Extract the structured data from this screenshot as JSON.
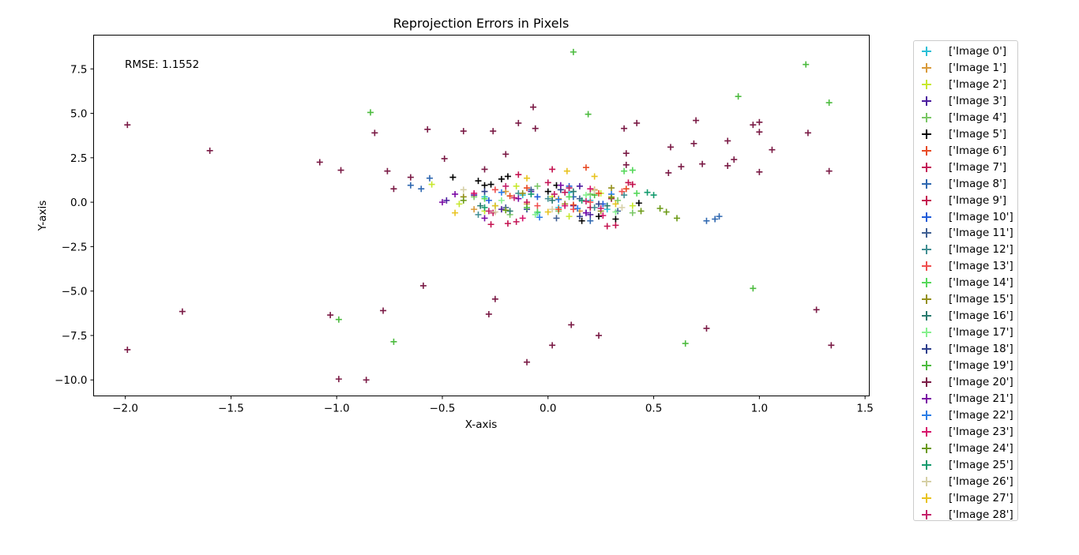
{
  "chart_data": {
    "type": "scatter",
    "title": "Reprojection Errors in Pixels",
    "xlabel": "X-axis",
    "ylabel": "Y-axis",
    "annotation": "RMSE: 1.1552",
    "xlim": [
      -2.15,
      1.52
    ],
    "ylim": [
      -10.9,
      9.4
    ],
    "xticks": [
      -2.0,
      -1.5,
      -1.0,
      -0.5,
      0.0,
      0.5,
      1.0,
      1.5
    ],
    "xtick_labels": [
      "−2.0",
      "−1.5",
      "−1.0",
      "−0.5",
      "0.0",
      "0.5",
      "1.0",
      "1.5"
    ],
    "yticks": [
      -10.0,
      -7.5,
      -5.0,
      -2.5,
      0.0,
      2.5,
      5.0,
      7.5
    ],
    "ytick_labels": [
      "−10.0",
      "−7.5",
      "−5.0",
      "−2.5",
      "0.0",
      "2.5",
      "5.0",
      "7.5"
    ],
    "grid": false,
    "legend_position": "outside-right",
    "marker": "plus",
    "series": [
      {
        "name": "['Image 0']",
        "color": "#2bbfd6",
        "points": [
          [
            -0.12,
            0.4
          ],
          [
            0.05,
            -0.3
          ],
          [
            0.2,
            0.1
          ],
          [
            -0.25,
            -0.2
          ],
          [
            0.1,
            0.55
          ],
          [
            -0.05,
            -0.6
          ],
          [
            0.28,
            -0.4
          ],
          [
            -0.3,
            0.3
          ]
        ]
      },
      {
        "name": "['Image 1']",
        "color": "#d99a3a",
        "points": [
          [
            -0.2,
            0.6
          ],
          [
            0.15,
            -0.5
          ],
          [
            0.3,
            0.3
          ],
          [
            -0.1,
            -0.1
          ],
          [
            0.22,
            0.7
          ],
          [
            -0.35,
            -0.4
          ],
          [
            0.05,
            0.2
          ]
        ]
      },
      {
        "name": "['Image 2']",
        "color": "#c7e82c",
        "points": [
          [
            -0.3,
            -0.5
          ],
          [
            0.25,
            0.5
          ],
          [
            -0.15,
            0.9
          ],
          [
            0.1,
            -0.8
          ],
          [
            0.4,
            -0.2
          ],
          [
            -0.55,
            1.0
          ],
          [
            0.02,
            0.3
          ],
          [
            -0.42,
            -0.1
          ]
        ]
      },
      {
        "name": "['Image 3']",
        "color": "#4b1b9e",
        "points": [
          [
            -0.48,
            0.1
          ],
          [
            0.15,
            0.9
          ],
          [
            -0.22,
            -0.4
          ],
          [
            0.3,
            0.2
          ],
          [
            -0.08,
            0.6
          ],
          [
            0.2,
            -0.7
          ],
          [
            -0.35,
            0.4
          ],
          [
            0.12,
            -0.2
          ]
        ]
      },
      {
        "name": "['Image 4']",
        "color": "#7ac765",
        "points": [
          [
            -0.35,
            0.3
          ],
          [
            0.05,
            -0.5
          ],
          [
            0.2,
            0.45
          ],
          [
            -0.18,
            -0.7
          ],
          [
            0.33,
            0.1
          ],
          [
            0.4,
            -0.6
          ],
          [
            -0.05,
            0.9
          ]
        ]
      },
      {
        "name": "['Image 5']",
        "color": "#000000",
        "points": [
          [
            -0.45,
            1.4
          ],
          [
            -0.33,
            1.2
          ],
          [
            -0.22,
            1.3
          ],
          [
            -0.19,
            1.45
          ],
          [
            -0.3,
            0.95
          ],
          [
            0.04,
            0.95
          ],
          [
            0.16,
            -1.05
          ],
          [
            0.24,
            -0.8
          ],
          [
            0.32,
            -0.95
          ],
          [
            0.43,
            -0.05
          ],
          [
            -0.27,
            1.0
          ],
          [
            0.0,
            0.6
          ]
        ]
      },
      {
        "name": "['Image 6']",
        "color": "#e84a24",
        "points": [
          [
            0.18,
            1.95
          ],
          [
            0.37,
            0.75
          ],
          [
            -0.18,
            0.35
          ],
          [
            0.05,
            -0.4
          ],
          [
            0.24,
            0.5
          ],
          [
            -0.1,
            0.8
          ],
          [
            0.12,
            -0.15
          ]
        ]
      },
      {
        "name": "['Image 7']",
        "color": "#c31757",
        "points": [
          [
            -0.1,
            0.0
          ],
          [
            0.08,
            0.55
          ],
          [
            -0.26,
            -0.6
          ],
          [
            0.2,
            -0.3
          ],
          [
            0.0,
            1.1
          ],
          [
            -0.15,
            -1.1
          ],
          [
            0.3,
            0.2
          ]
        ]
      },
      {
        "name": "['Image 8']",
        "color": "#2e67b0",
        "points": [
          [
            -0.65,
            0.95
          ],
          [
            -0.6,
            0.75
          ],
          [
            -0.56,
            1.35
          ],
          [
            0.81,
            -0.8
          ],
          [
            0.79,
            -0.95
          ],
          [
            0.75,
            -1.05
          ],
          [
            0.2,
            -1.05
          ],
          [
            0.12,
            0.3
          ]
        ]
      },
      {
        "name": "['Image 9']",
        "color": "#c4124f",
        "points": [
          [
            0.28,
            -1.35
          ],
          [
            0.32,
            -1.3
          ],
          [
            -0.27,
            -1.25
          ],
          [
            0.4,
            1.0
          ],
          [
            0.38,
            1.1
          ],
          [
            0.02,
            1.85
          ],
          [
            -0.14,
            1.55
          ],
          [
            -0.19,
            -1.2
          ]
        ]
      },
      {
        "name": "['Image 10']",
        "color": "#1f5bd9",
        "points": [
          [
            -0.05,
            0.3
          ],
          [
            0.18,
            -0.6
          ],
          [
            -0.28,
            0.1
          ],
          [
            0.1,
            0.9
          ],
          [
            0.26,
            -0.1
          ]
        ]
      },
      {
        "name": "['Image 11']",
        "color": "#3e5e92",
        "points": [
          [
            -0.2,
            -0.3
          ],
          [
            0.15,
            0.2
          ],
          [
            0.33,
            -0.5
          ],
          [
            -0.08,
            0.7
          ],
          [
            0.04,
            -0.9
          ]
        ]
      },
      {
        "name": "['Image 12']",
        "color": "#418f93",
        "points": [
          [
            -0.33,
            -0.7
          ],
          [
            0.0,
            0.2
          ],
          [
            0.22,
            -0.3
          ],
          [
            -0.14,
            0.5
          ],
          [
            0.36,
            0.4
          ]
        ]
      },
      {
        "name": "['Image 13']",
        "color": "#f04e4e",
        "points": [
          [
            -0.25,
            0.7
          ],
          [
            0.12,
            -0.4
          ],
          [
            0.35,
            0.6
          ],
          [
            -0.05,
            -0.2
          ],
          [
            0.2,
            0.0
          ]
        ]
      },
      {
        "name": "['Image 14']",
        "color": "#55d85a",
        "points": [
          [
            0.36,
            1.75
          ],
          [
            0.4,
            1.8
          ],
          [
            0.42,
            0.5
          ],
          [
            -0.05,
            -0.55
          ],
          [
            0.1,
            0.3
          ],
          [
            -0.3,
            0.2
          ]
        ]
      },
      {
        "name": "['Image 15']",
        "color": "#94901b",
        "points": [
          [
            -0.4,
            0.3
          ],
          [
            0.25,
            -0.5
          ],
          [
            -0.12,
            0.5
          ],
          [
            0.08,
            -0.1
          ],
          [
            0.3,
            0.8
          ]
        ]
      },
      {
        "name": "['Image 16']",
        "color": "#287a6e",
        "points": [
          [
            -0.18,
            -0.5
          ],
          [
            0.12,
            0.6
          ],
          [
            -0.32,
            -0.2
          ],
          [
            0.28,
            -0.2
          ],
          [
            0.02,
            0.1
          ]
        ]
      },
      {
        "name": "['Image 17']",
        "color": "#86f08e",
        "points": [
          [
            -0.22,
            0.1
          ],
          [
            0.18,
            0.4
          ],
          [
            -0.06,
            -0.7
          ],
          [
            0.32,
            -0.55
          ],
          [
            0.1,
            0.8
          ]
        ]
      },
      {
        "name": "['Image 18']",
        "color": "#2c3e8c",
        "points": [
          [
            -0.1,
            -0.4
          ],
          [
            0.06,
            0.7
          ],
          [
            0.24,
            -0.1
          ],
          [
            -0.3,
            0.6
          ],
          [
            0.15,
            -0.8
          ]
        ]
      },
      {
        "name": "['Image 19']",
        "color": "#4cbb3f",
        "points": [
          [
            0.12,
            8.45
          ],
          [
            1.22,
            7.75
          ],
          [
            1.33,
            5.6
          ],
          [
            0.9,
            5.95
          ],
          [
            0.19,
            4.95
          ],
          [
            -0.84,
            5.05
          ],
          [
            0.97,
            -4.85
          ],
          [
            -0.99,
            -6.6
          ],
          [
            -0.73,
            -7.85
          ],
          [
            0.65,
            -7.95
          ],
          [
            0.22,
            0.4
          ],
          [
            -0.1,
            -0.3
          ]
        ]
      },
      {
        "name": "['Image 20']",
        "color": "#7a1a45",
        "points": [
          [
            -1.99,
            4.35
          ],
          [
            -1.6,
            2.9
          ],
          [
            -1.08,
            2.25
          ],
          [
            -0.98,
            1.8
          ],
          [
            -0.82,
            3.9
          ],
          [
            -0.76,
            1.75
          ],
          [
            -0.73,
            0.75
          ],
          [
            -0.49,
            2.45
          ],
          [
            -0.4,
            4.0
          ],
          [
            -0.3,
            1.85
          ],
          [
            -0.26,
            4.0
          ],
          [
            -0.2,
            2.7
          ],
          [
            -0.14,
            4.45
          ],
          [
            -0.07,
            5.35
          ],
          [
            -0.06,
            4.15
          ],
          [
            -0.57,
            4.1
          ],
          [
            0.36,
            4.15
          ],
          [
            0.37,
            2.75
          ],
          [
            0.42,
            4.45
          ],
          [
            0.57,
            1.65
          ],
          [
            0.58,
            3.1
          ],
          [
            0.63,
            2.0
          ],
          [
            0.69,
            3.3
          ],
          [
            0.7,
            4.6
          ],
          [
            0.73,
            2.15
          ],
          [
            0.85,
            3.45
          ],
          [
            0.85,
            2.05
          ],
          [
            0.88,
            2.4
          ],
          [
            0.97,
            4.35
          ],
          [
            1.0,
            4.5
          ],
          [
            1.0,
            3.95
          ],
          [
            1.0,
            1.7
          ],
          [
            1.06,
            2.95
          ],
          [
            1.23,
            3.9
          ],
          [
            1.33,
            1.75
          ],
          [
            -1.99,
            -8.3
          ],
          [
            -1.73,
            -6.15
          ],
          [
            -1.03,
            -6.35
          ],
          [
            -0.99,
            -9.95
          ],
          [
            -0.86,
            -10.0
          ],
          [
            -0.78,
            -6.1
          ],
          [
            -0.59,
            -4.7
          ],
          [
            -0.28,
            -6.3
          ],
          [
            -0.25,
            -5.45
          ],
          [
            -0.1,
            -9.0
          ],
          [
            0.02,
            -8.05
          ],
          [
            0.11,
            -6.9
          ],
          [
            0.24,
            -7.5
          ],
          [
            0.75,
            -7.1
          ],
          [
            1.27,
            -6.05
          ],
          [
            1.34,
            -8.05
          ],
          [
            -0.65,
            1.4
          ],
          [
            0.37,
            2.1
          ]
        ]
      },
      {
        "name": "['Image 21']",
        "color": "#7b0aa5",
        "points": [
          [
            -0.5,
            0.0
          ],
          [
            -0.44,
            0.45
          ],
          [
            -0.3,
            -0.9
          ],
          [
            0.06,
            0.95
          ],
          [
            0.18,
            -0.6
          ],
          [
            -0.14,
            0.2
          ]
        ]
      },
      {
        "name": "['Image 22']",
        "color": "#2a7de6",
        "points": [
          [
            -0.22,
            0.55
          ],
          [
            0.14,
            -0.35
          ],
          [
            0.3,
            0.45
          ],
          [
            -0.04,
            -0.85
          ],
          [
            0.05,
            0.15
          ]
        ]
      },
      {
        "name": "['Image 23']",
        "color": "#d6126a",
        "points": [
          [
            -0.12,
            -0.9
          ],
          [
            0.2,
            0.75
          ],
          [
            -0.35,
            0.5
          ],
          [
            0.26,
            -0.75
          ],
          [
            0.08,
            -0.2
          ]
        ]
      },
      {
        "name": "['Image 24']",
        "color": "#6b9a16",
        "points": [
          [
            0.61,
            -0.9
          ],
          [
            0.53,
            -0.35
          ],
          [
            0.56,
            -0.55
          ],
          [
            0.44,
            -0.5
          ],
          [
            -0.4,
            0.1
          ],
          [
            0.3,
            0.25
          ],
          [
            -0.2,
            -0.45
          ]
        ]
      },
      {
        "name": "['Image 25']",
        "color": "#139b6e",
        "points": [
          [
            0.47,
            0.55
          ],
          [
            0.5,
            0.4
          ],
          [
            -0.3,
            -0.3
          ],
          [
            0.16,
            0.1
          ],
          [
            -0.08,
            0.45
          ]
        ]
      },
      {
        "name": "['Image 26']",
        "color": "#d6d0a6",
        "points": [
          [
            -0.25,
            -0.55
          ],
          [
            0.22,
            0.65
          ],
          [
            0.02,
            -0.4
          ],
          [
            -0.4,
            0.7
          ],
          [
            0.35,
            -0.3
          ]
        ]
      },
      {
        "name": "['Image 27']",
        "color": "#e8c31f",
        "points": [
          [
            -0.44,
            -0.6
          ],
          [
            0.09,
            1.75
          ],
          [
            0.22,
            1.45
          ],
          [
            -0.1,
            1.35
          ],
          [
            -0.25,
            -0.2
          ],
          [
            0.32,
            -0.1
          ],
          [
            0.0,
            -0.55
          ]
        ]
      },
      {
        "name": "['Image 28']",
        "color": "#c41f6a",
        "points": [
          [
            0.1,
            0.8
          ],
          [
            -0.16,
            0.25
          ],
          [
            0.25,
            -0.35
          ],
          [
            -0.28,
            -0.5
          ],
          [
            0.03,
            0.45
          ],
          [
            -0.2,
            0.9
          ],
          [
            0.18,
            0.05
          ]
        ]
      }
    ]
  }
}
